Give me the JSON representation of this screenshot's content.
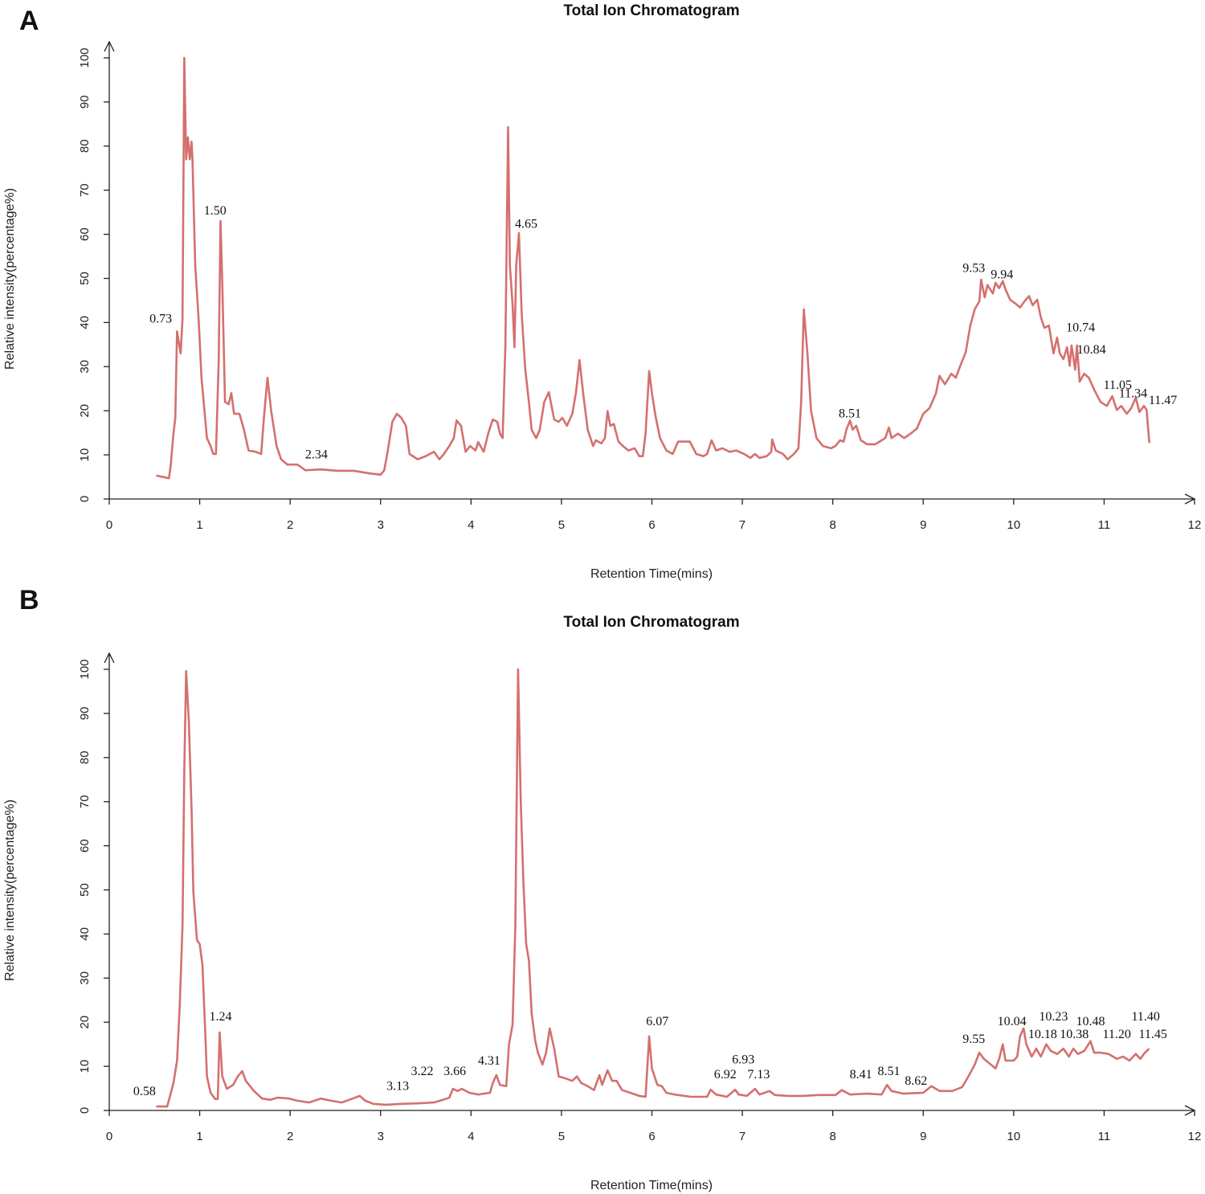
{
  "line_color": "#d4706f",
  "chart_data": [
    {
      "panel_label": "A",
      "type": "line",
      "title": "Total Ion Chromatogram",
      "xlabel": "Retention Time(mins)",
      "ylabel": "Relative intensity(percentage%)",
      "xlim": [
        0,
        12
      ],
      "ylim": [
        0,
        100
      ],
      "xticks": [
        0,
        1,
        2,
        3,
        4,
        5,
        6,
        7,
        8,
        9,
        10,
        11,
        12
      ],
      "yticks": [
        0,
        10,
        20,
        30,
        40,
        50,
        60,
        70,
        80,
        90,
        100
      ],
      "grid": false,
      "x": [
        0.52,
        0.66,
        0.68,
        0.71,
        0.73,
        0.75,
        0.79,
        0.81,
        0.83,
        0.85,
        0.87,
        0.89,
        0.91,
        0.92,
        0.95,
        0.99,
        1.02,
        1.08,
        1.12,
        1.15,
        1.18,
        1.21,
        1.23,
        1.25,
        1.28,
        1.32,
        1.35,
        1.38,
        1.44,
        1.49,
        1.54,
        1.62,
        1.68,
        1.71,
        1.75,
        1.79,
        1.85,
        1.9,
        1.97,
        2.08,
        2.17,
        2.34,
        2.52,
        2.7,
        2.88,
        3.0,
        3.04,
        3.08,
        3.13,
        3.18,
        3.23,
        3.28,
        3.32,
        3.41,
        3.5,
        3.59,
        3.65,
        3.7,
        3.76,
        3.81,
        3.84,
        3.89,
        3.94,
        3.99,
        4.05,
        4.08,
        4.14,
        4.19,
        4.24,
        4.29,
        4.32,
        4.35,
        4.38,
        4.41,
        4.43,
        4.46,
        4.48,
        4.5,
        4.53,
        4.56,
        4.6,
        4.64,
        4.67,
        4.72,
        4.76,
        4.81,
        4.86,
        4.92,
        4.97,
        5.01,
        5.06,
        5.12,
        5.16,
        5.2,
        5.24,
        5.29,
        5.35,
        5.38,
        5.44,
        5.48,
        5.51,
        5.54,
        5.58,
        5.63,
        5.68,
        5.74,
        5.81,
        5.86,
        5.9,
        5.93,
        5.97,
        6.0,
        6.04,
        6.09,
        6.16,
        6.23,
        6.29,
        6.36,
        6.42,
        6.49,
        6.57,
        6.61,
        6.66,
        6.71,
        6.78,
        6.86,
        6.93,
        7.02,
        7.09,
        7.14,
        7.19,
        7.27,
        7.32,
        7.33,
        7.37,
        7.45,
        7.5,
        7.57,
        7.62,
        7.65,
        7.68,
        7.72,
        7.76,
        7.82,
        7.89,
        7.98,
        8.03,
        8.08,
        8.12,
        8.15,
        8.19,
        8.22,
        8.26,
        8.31,
        8.38,
        8.47,
        8.54,
        8.58,
        8.62,
        8.65,
        8.72,
        8.79,
        8.86,
        8.93,
        9.0,
        9.07,
        9.14,
        9.18,
        9.24,
        9.31,
        9.36,
        9.41,
        9.47,
        9.52,
        9.57,
        9.62,
        9.64,
        9.68,
        9.71,
        9.77,
        9.8,
        9.84,
        9.88,
        9.91,
        9.96,
        10.02,
        10.07,
        10.12,
        10.17,
        10.21,
        10.26,
        10.3,
        10.34,
        10.39,
        10.44,
        10.48,
        10.51,
        10.55,
        10.59,
        10.62,
        10.64,
        10.68,
        10.7,
        10.73,
        10.78,
        10.83,
        10.89,
        10.96,
        11.03,
        11.09,
        11.14,
        11.19,
        11.25,
        11.3,
        11.35,
        11.39,
        11.44,
        11.47,
        11.5
      ],
      "y": [
        5.3,
        4.7,
        7.8,
        14.8,
        18.4,
        38,
        33,
        41,
        100,
        77,
        82,
        77,
        81,
        77,
        53,
        40,
        27.5,
        13.8,
        12,
        10.2,
        10.2,
        31,
        63,
        49,
        22,
        21.5,
        24,
        19.3,
        19.3,
        15.7,
        11,
        10.7,
        10.2,
        18.4,
        27.5,
        20,
        12,
        9,
        7.8,
        7.8,
        6.5,
        6.7,
        6.4,
        6.4,
        5.8,
        5.5,
        6.5,
        11,
        17.5,
        19.3,
        18.4,
        16.6,
        10.2,
        9,
        9.7,
        10.7,
        9,
        10.2,
        12,
        13.8,
        17.8,
        16.6,
        10.7,
        12,
        11,
        12.9,
        10.7,
        14.8,
        18,
        17.5,
        14.8,
        13.8,
        34.8,
        84.3,
        53,
        43.9,
        34.4,
        53,
        60.3,
        42,
        29.3,
        22,
        15.7,
        13.8,
        15.7,
        22,
        24.2,
        18,
        17.5,
        18.4,
        16.6,
        19.3,
        24,
        31.5,
        24,
        15.7,
        12,
        13.3,
        12.6,
        13.8,
        19.9,
        16.6,
        17,
        13,
        12,
        11,
        11.5,
        9.7,
        9.7,
        14.8,
        29,
        24,
        18.8,
        13.8,
        11,
        10.2,
        13,
        13,
        13,
        10.2,
        9.7,
        10.2,
        13.3,
        11,
        11.5,
        10.7,
        11,
        10.2,
        9.3,
        10.2,
        9.3,
        9.7,
        10.7,
        13.5,
        11,
        10.2,
        9,
        10.2,
        11.5,
        22,
        43,
        33,
        20,
        13.8,
        12,
        11.5,
        12,
        13.3,
        13,
        15.7,
        17.8,
        15.7,
        16.6,
        13.3,
        12.4,
        12.4,
        13.3,
        13.8,
        16.2,
        13.8,
        14.8,
        13.8,
        14.8,
        16,
        19.3,
        20.6,
        23.9,
        27.9,
        26,
        28.4,
        27.5,
        30.2,
        33.3,
        39.3,
        43,
        44.8,
        49.7,
        45.7,
        48.5,
        46.6,
        49,
        47.8,
        49.4,
        47.5,
        45.2,
        44.3,
        43.4,
        44.8,
        46,
        43.9,
        45.2,
        41.2,
        38.8,
        39.3,
        33,
        36.6,
        33,
        31.7,
        34.4,
        30.2,
        34.8,
        29.3,
        34.8,
        26.6,
        28.4,
        27.5,
        24.8,
        22,
        21.1,
        23.3,
        20.2,
        21.1,
        19.3,
        20.6,
        23,
        19.7,
        21.1,
        20.2,
        12.7
      ],
      "annotations": [
        {
          "label": "0.73",
          "x": 0.57,
          "y": 40
        },
        {
          "label": "1.50",
          "x": 1.17,
          "y": 64.5
        },
        {
          "label": "2.34",
          "x": 2.29,
          "y": 9.2
        },
        {
          "label": "4.65",
          "x": 4.61,
          "y": 61.5
        },
        {
          "label": "8.51",
          "x": 8.19,
          "y": 18.5
        },
        {
          "label": "9.53",
          "x": 9.56,
          "y": 51.5
        },
        {
          "label": "9.94",
          "x": 9.87,
          "y": 50
        },
        {
          "label": "10.74",
          "x": 10.74,
          "y": 38
        },
        {
          "label": "10.84",
          "x": 10.86,
          "y": 33
        },
        {
          "label": "11.05",
          "x": 11.15,
          "y": 25
        },
        {
          "label": "11.34",
          "x": 11.32,
          "y": 23
        },
        {
          "label": "11.47",
          "x": 11.65,
          "y": 21.5
        }
      ]
    },
    {
      "panel_label": "B",
      "type": "line",
      "title": "Total Ion Chromatogram",
      "xlabel": "Retention Time(mins)",
      "ylabel": "Relative intensity(percentage%)",
      "xlim": [
        0,
        12
      ],
      "ylim": [
        0,
        100
      ],
      "xticks": [
        0,
        1,
        2,
        3,
        4,
        5,
        6,
        7,
        8,
        9,
        10,
        11,
        12
      ],
      "yticks": [
        0,
        10,
        20,
        30,
        40,
        50,
        60,
        70,
        80,
        90,
        100
      ],
      "grid": false,
      "x": [
        0.52,
        0.64,
        0.67,
        0.71,
        0.75,
        0.78,
        0.81,
        0.83,
        0.85,
        0.88,
        0.91,
        0.93,
        0.97,
        1.0,
        1.03,
        1.06,
        1.08,
        1.12,
        1.17,
        1.2,
        1.22,
        1.25,
        1.3,
        1.37,
        1.42,
        1.47,
        1.51,
        1.6,
        1.69,
        1.78,
        1.86,
        1.99,
        2.08,
        2.21,
        2.34,
        2.45,
        2.57,
        2.68,
        2.77,
        2.83,
        2.92,
        3.06,
        3.23,
        3.41,
        3.59,
        3.69,
        3.76,
        3.8,
        3.85,
        3.9,
        3.98,
        4.08,
        4.21,
        4.24,
        4.28,
        4.32,
        4.39,
        4.42,
        4.46,
        4.49,
        4.52,
        4.55,
        4.58,
        4.61,
        4.64,
        4.67,
        4.71,
        4.74,
        4.79,
        4.83,
        4.87,
        4.92,
        4.97,
        5.04,
        5.12,
        5.17,
        5.22,
        5.29,
        5.36,
        5.42,
        5.45,
        5.51,
        5.56,
        5.61,
        5.67,
        5.76,
        5.86,
        5.93,
        5.97,
        6.0,
        6.06,
        6.11,
        6.16,
        6.25,
        6.43,
        6.61,
        6.65,
        6.71,
        6.83,
        6.92,
        6.96,
        7.05,
        7.14,
        7.19,
        7.3,
        7.36,
        7.5,
        7.67,
        7.85,
        8.03,
        8.1,
        8.19,
        8.38,
        8.54,
        8.6,
        8.65,
        8.78,
        9.0,
        9.09,
        9.18,
        9.32,
        9.43,
        9.5,
        9.57,
        9.62,
        9.67,
        9.73,
        9.8,
        9.84,
        9.88,
        9.91,
        10.0,
        10.04,
        10.07,
        10.11,
        10.14,
        10.2,
        10.25,
        10.3,
        10.36,
        10.41,
        10.48,
        10.55,
        10.61,
        10.66,
        10.71,
        10.78,
        10.85,
        10.89,
        10.96,
        11.05,
        11.14,
        11.21,
        11.28,
        11.35,
        11.4,
        11.45,
        11.5
      ],
      "y": [
        0.9,
        0.9,
        3.1,
        6.2,
        11.3,
        24,
        42,
        77,
        99.6,
        88,
        68,
        49.5,
        38.6,
        37.7,
        33,
        18.6,
        7.7,
        4,
        2.6,
        2.6,
        17.7,
        7.7,
        4.9,
        5.8,
        7.7,
        8.9,
        6.7,
        4.4,
        2.7,
        2.4,
        2.9,
        2.7,
        2.2,
        1.8,
        2.7,
        2.2,
        1.8,
        2.6,
        3.3,
        2.2,
        1.5,
        1.3,
        1.5,
        1.6,
        1.8,
        2.4,
        2.9,
        4.9,
        4.4,
        4.9,
        4,
        3.6,
        4,
        6.2,
        8,
        5.8,
        5.5,
        15,
        19.5,
        42,
        100,
        69.6,
        51.4,
        37.7,
        34,
        22,
        15.8,
        13.1,
        10.4,
        13.1,
        18.6,
        14,
        7.7,
        7.3,
        6.7,
        7.7,
        6.2,
        5.5,
        4.6,
        8,
        5.8,
        9.1,
        6.7,
        6.7,
        4.6,
        4,
        3.3,
        3.1,
        16.8,
        9.5,
        5.8,
        5.5,
        4,
        3.6,
        3.1,
        3.1,
        4.7,
        3.6,
        3.1,
        4.7,
        3.6,
        3.3,
        4.9,
        3.6,
        4.4,
        3.5,
        3.3,
        3.3,
        3.5,
        3.5,
        4.6,
        3.6,
        3.8,
        3.6,
        5.8,
        4.4,
        3.8,
        4,
        5.5,
        4.4,
        4.4,
        5.3,
        7.7,
        10.4,
        13.1,
        11.7,
        10.7,
        9.5,
        11.7,
        15,
        11.3,
        11.3,
        12.2,
        16.8,
        18.6,
        15,
        12.2,
        14,
        12.2,
        15,
        13.5,
        12.8,
        14,
        12.2,
        14,
        12.8,
        13.5,
        15.7,
        13.1,
        13.1,
        12.8,
        11.7,
        12.2,
        11.3,
        12.8,
        11.7,
        13.1,
        14
      ],
      "annotations": [
        {
          "label": "0.58",
          "x": 0.39,
          "y": 3.5
        },
        {
          "label": "1.24",
          "x": 1.23,
          "y": 20.4
        },
        {
          "label": "3.13",
          "x": 3.19,
          "y": 4.6
        },
        {
          "label": "3.22",
          "x": 3.46,
          "y": 8
        },
        {
          "label": "3.66",
          "x": 3.82,
          "y": 8
        },
        {
          "label": "4.31",
          "x": 4.2,
          "y": 10.4
        },
        {
          "label": "6.07",
          "x": 6.06,
          "y": 19.3
        },
        {
          "label": "6.92",
          "x": 6.81,
          "y": 7.3
        },
        {
          "label": "6.93",
          "x": 7.01,
          "y": 10.7
        },
        {
          "label": "7.13",
          "x": 7.18,
          "y": 7.3
        },
        {
          "label": "8.41",
          "x": 8.31,
          "y": 7.3
        },
        {
          "label": "8.51",
          "x": 8.62,
          "y": 8
        },
        {
          "label": "8.62",
          "x": 8.92,
          "y": 5.8
        },
        {
          "label": "9.55",
          "x": 9.56,
          "y": 15.3
        },
        {
          "label": "10.04",
          "x": 9.98,
          "y": 19.3
        },
        {
          "label": "10.18",
          "x": 10.32,
          "y": 16.4
        },
        {
          "label": "10.23",
          "x": 10.44,
          "y": 20.4
        },
        {
          "label": "10.38",
          "x": 10.67,
          "y": 16.4
        },
        {
          "label": "10.48",
          "x": 10.85,
          "y": 19.3
        },
        {
          "label": "11.20",
          "x": 11.14,
          "y": 16.4
        },
        {
          "label": "11.40",
          "x": 11.46,
          "y": 20.4
        },
        {
          "label": "11.45",
          "x": 11.54,
          "y": 16.4
        }
      ]
    }
  ]
}
